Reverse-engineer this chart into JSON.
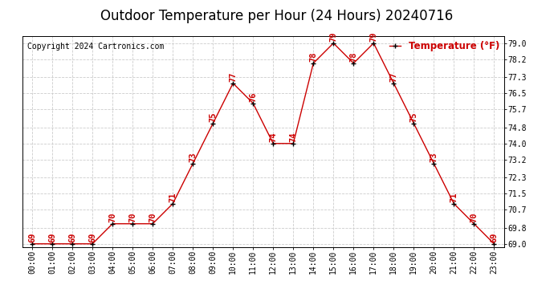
{
  "title": "Outdoor Temperature per Hour (24 Hours) 20240716",
  "copyright_text": "Copyright 2024 Cartronics.com",
  "legend_label": "Temperature (°F)",
  "hours": [
    "00:00",
    "01:00",
    "02:00",
    "03:00",
    "04:00",
    "05:00",
    "06:00",
    "07:00",
    "08:00",
    "09:00",
    "10:00",
    "11:00",
    "12:00",
    "13:00",
    "14:00",
    "15:00",
    "16:00",
    "17:00",
    "18:00",
    "19:00",
    "20:00",
    "21:00",
    "22:00",
    "23:00"
  ],
  "temperatures": [
    69,
    69,
    69,
    69,
    70,
    70,
    70,
    71,
    73,
    75,
    77,
    76,
    74,
    74,
    78,
    79,
    78,
    79,
    77,
    75,
    73,
    71,
    70,
    69
  ],
  "line_color": "#cc0000",
  "marker_color": "#000000",
  "label_color": "#cc0000",
  "title_color": "#000000",
  "copyright_color": "#000000",
  "legend_color": "#cc0000",
  "background_color": "#ffffff",
  "grid_color": "#cccccc",
  "ylim_min": 68.85,
  "ylim_max": 79.35,
  "yticks": [
    69.0,
    69.8,
    70.7,
    71.5,
    72.3,
    73.2,
    74.0,
    74.8,
    75.7,
    76.5,
    77.3,
    78.2,
    79.0
  ],
  "title_fontsize": 12,
  "copyright_fontsize": 7,
  "label_fontsize": 7.5,
  "legend_fontsize": 8.5,
  "tick_fontsize": 7
}
